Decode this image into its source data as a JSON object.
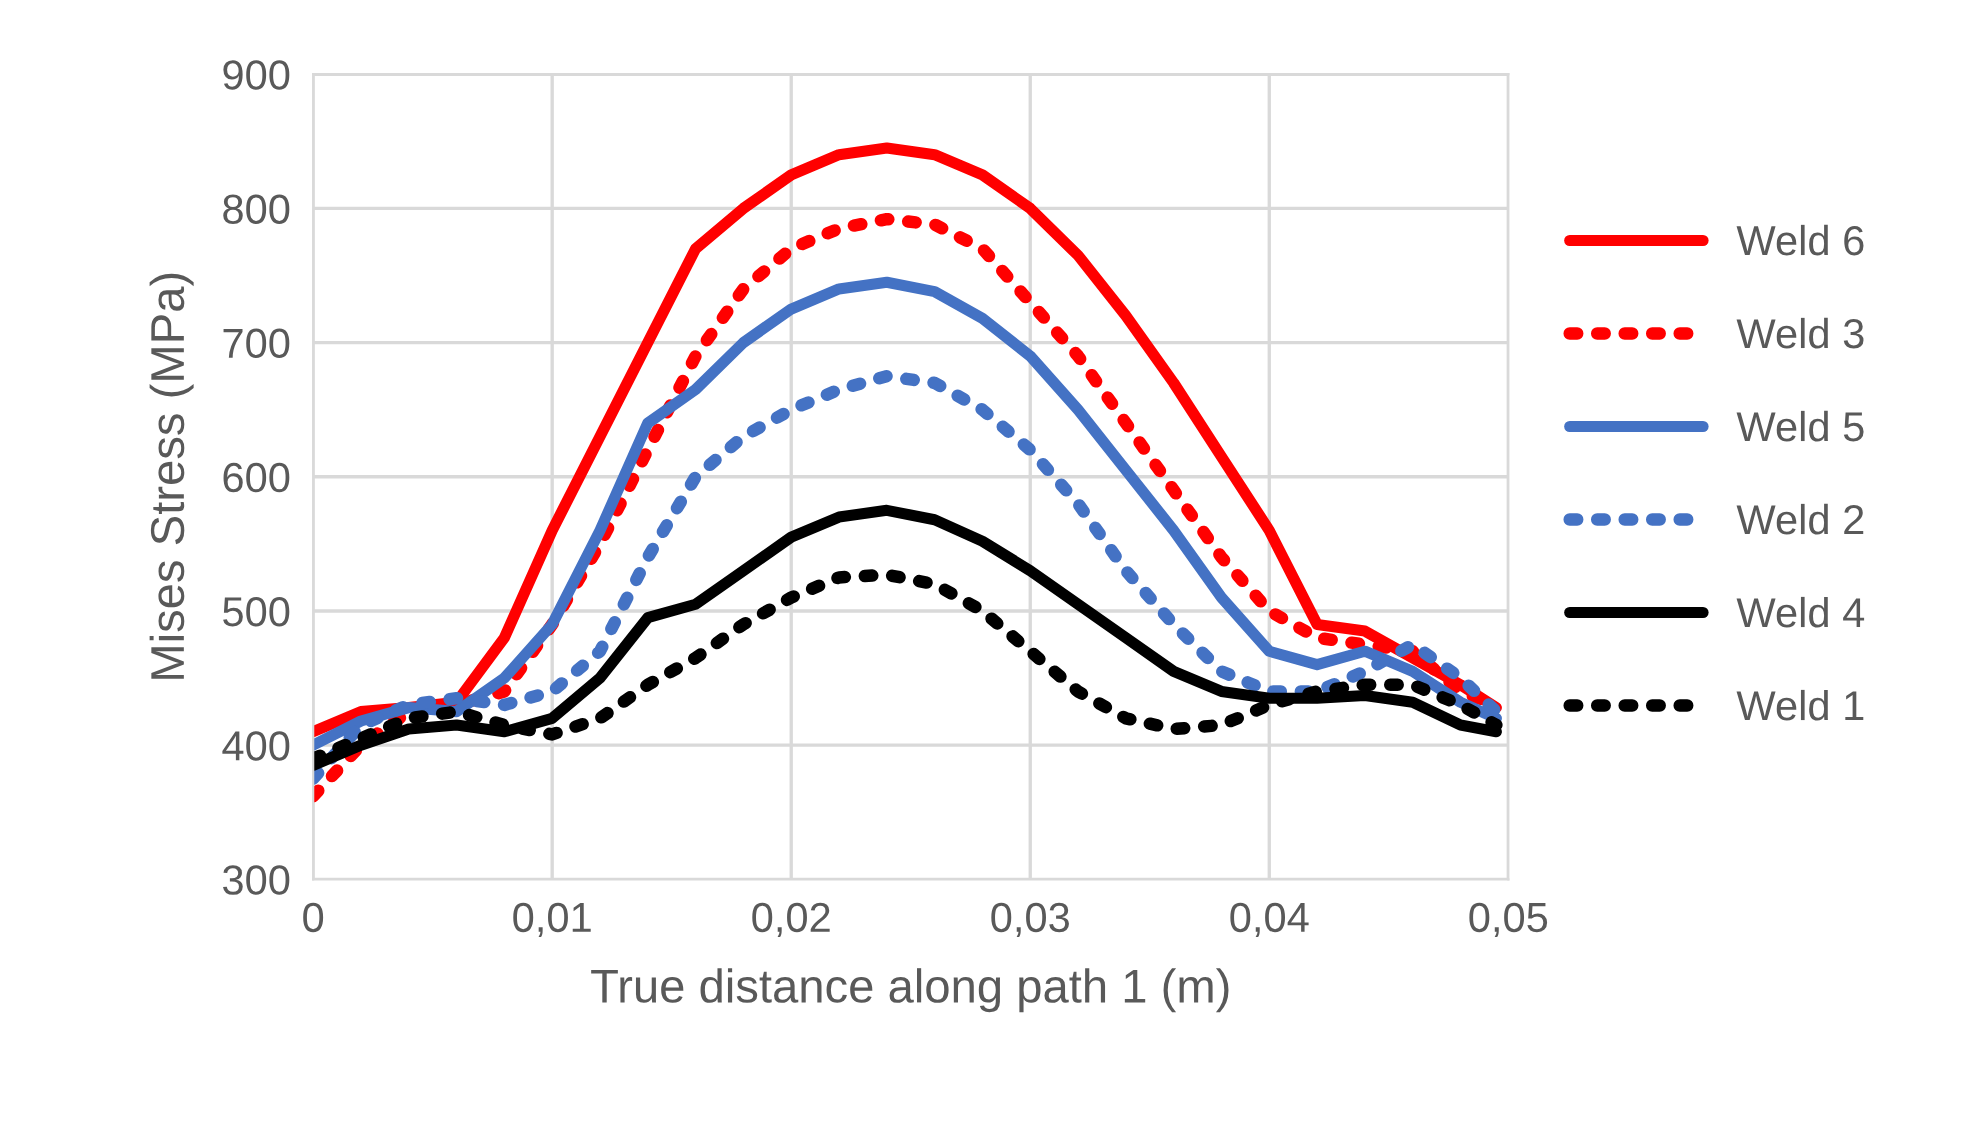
{
  "chart_data": {
    "type": "line",
    "xlabel": "True distance along path 1 (m)",
    "ylabel": "Mises Stress (MPa)",
    "x": [
      0,
      0.002,
      0.004,
      0.006,
      0.008,
      0.01,
      0.012,
      0.014,
      0.016,
      0.018,
      0.02,
      0.022,
      0.024,
      0.026,
      0.028,
      0.03,
      0.032,
      0.034,
      0.036,
      0.038,
      0.04,
      0.042,
      0.044,
      0.046,
      0.048,
      0.0495
    ],
    "series": [
      {
        "name": "Weld 6",
        "color": "#ff0000",
        "line_style": "solid",
        "values": [
          410,
          425,
          428,
          432,
          480,
          560,
          630,
          700,
          770,
          800,
          825,
          840,
          845,
          840,
          825,
          800,
          765,
          720,
          670,
          615,
          560,
          490,
          485,
          465,
          445,
          428
        ]
      },
      {
        "name": "Weld 3",
        "color": "#ff0000",
        "line_style": "dotted",
        "values": [
          362,
          400,
          425,
          430,
          440,
          490,
          550,
          620,
          690,
          740,
          770,
          785,
          792,
          788,
          770,
          730,
          690,
          640,
          590,
          540,
          500,
          480,
          475,
          470,
          440,
          430
        ]
      },
      {
        "name": "Weld 5",
        "color": "#4472c4",
        "line_style": "solid",
        "values": [
          400,
          418,
          428,
          425,
          450,
          490,
          560,
          640,
          665,
          700,
          725,
          740,
          745,
          738,
          718,
          690,
          650,
          605,
          560,
          510,
          470,
          460,
          470,
          455,
          432,
          420
        ]
      },
      {
        "name": "Weld 2",
        "color": "#4472c4",
        "line_style": "dotted",
        "values": [
          375,
          415,
          430,
          435,
          430,
          440,
          470,
          540,
          600,
          630,
          650,
          665,
          675,
          670,
          650,
          620,
          580,
          530,
          490,
          455,
          440,
          440,
          455,
          475,
          450,
          425
        ]
      },
      {
        "name": "Weld 4",
        "color": "#000000",
        "line_style": "solid",
        "values": [
          385,
          400,
          412,
          415,
          410,
          420,
          450,
          495,
          505,
          530,
          555,
          570,
          575,
          568,
          552,
          530,
          505,
          480,
          455,
          440,
          435,
          435,
          437,
          432,
          415,
          410
        ]
      },
      {
        "name": "Weld 1",
        "color": "#000000",
        "line_style": "dotted",
        "values": [
          390,
          405,
          420,
          425,
          415,
          408,
          420,
          445,
          465,
          490,
          510,
          525,
          527,
          520,
          500,
          470,
          440,
          420,
          412,
          415,
          430,
          440,
          445,
          445,
          430,
          415
        ]
      }
    ],
    "xlim": [
      0,
      0.05
    ],
    "xticks": [
      0,
      {
        "value": 0.01,
        "label": "0,01"
      },
      {
        "value": 0.02,
        "label": "0,02"
      },
      {
        "value": 0.03,
        "label": "0,03"
      },
      {
        "value": 0.04,
        "label": "0,04"
      },
      {
        "value": 0.05,
        "label": "0,05"
      }
    ],
    "ylim": [
      300,
      900
    ],
    "yticks": [
      300,
      400,
      500,
      600,
      700,
      800,
      900
    ],
    "grid": true,
    "legend": "right",
    "marker": "none"
  }
}
